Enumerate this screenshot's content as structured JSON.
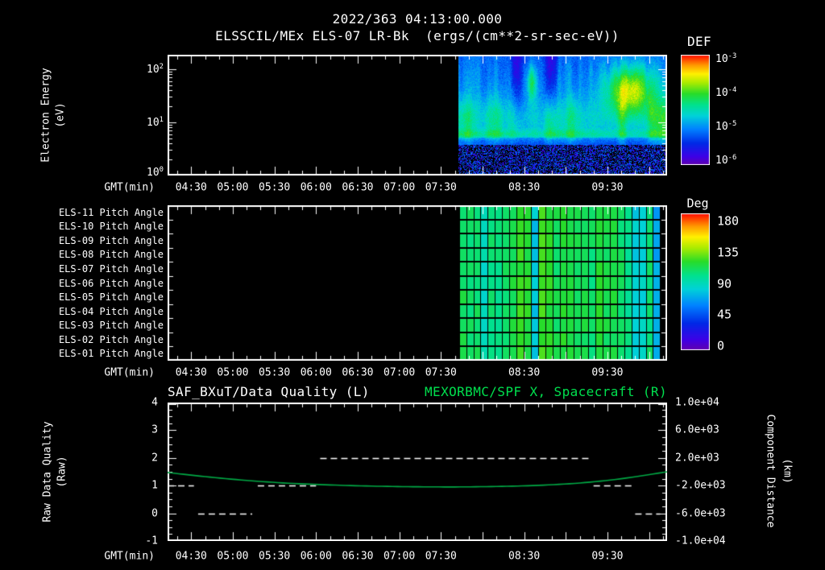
{
  "colors": {
    "background": "#000000",
    "foreground": "#ffffff",
    "accent_green": "#00e04e",
    "curve_green": "#00a844"
  },
  "header": {
    "timestamp": "2022/363 04:13:00.000",
    "plot_title": "ELSSCIL/MEx ELS-07 LR-Bk  (ergs/(cm**2-sr-sec-eV))"
  },
  "time_axis": {
    "label": "GMT(min)",
    "start_gmt": "04:13",
    "end_gmt": "10:13",
    "labeled_ticks": [
      "04:30",
      "05:00",
      "05:30",
      "06:00",
      "06:30",
      "07:00",
      "07:30",
      "08:30",
      "09:30"
    ]
  },
  "panel_energy": {
    "ylabel_line1": "Electron Energy",
    "ylabel_line2": "(eV)",
    "yticks": [
      "10^0",
      "10^1",
      "10^2"
    ],
    "colorbar": {
      "title": "DEF",
      "ticks": [
        "10^-3",
        "10^-4",
        "10^-5",
        "10^-6"
      ]
    }
  },
  "panel_pitch": {
    "row_labels": [
      "ELS-11 Pitch Angle",
      "ELS-10 Pitch Angle",
      "ELS-09 Pitch Angle",
      "ELS-08 Pitch Angle",
      "ELS-07 Pitch Angle",
      "ELS-06 Pitch Angle",
      "ELS-05 Pitch Angle",
      "ELS-04 Pitch Angle",
      "ELS-03 Pitch Angle",
      "ELS-02 Pitch Angle",
      "ELS-01 Pitch Angle"
    ],
    "colorbar": {
      "title": "Deg",
      "ticks": [
        "180",
        "135",
        "90",
        "45",
        "0"
      ]
    }
  },
  "panel_quality": {
    "title_left": "SAF_BXuT/Data Quality (L)",
    "title_right": "MEXORBMC/SPF X, Spacecraft (R)",
    "ylabel_left_line1": "Raw Data Quality",
    "ylabel_left_line2": "(Raw)",
    "ylabel_right_line1": "Component Distance",
    "ylabel_right_line2": "(km)",
    "yticks_left": [
      "4",
      "3",
      "2",
      "1",
      "0",
      "-1"
    ],
    "yticks_right": [
      "1.0e+04",
      "6.0e+03",
      "2.0e+03",
      "-2.0e+03",
      "-6.0e+03",
      "-1.0e+04"
    ]
  },
  "chart_data": [
    {
      "type": "heatmap",
      "panel": "electron-energy-spectrogram",
      "title": "ELSSCIL/MEx ELS-07 LR-Bk (ergs/(cm**2-sr-sec-eV))",
      "xlabel": "GMT(min)",
      "x_range_gmt": [
        "04:13",
        "10:13"
      ],
      "x_ticks": [
        "04:30",
        "05:00",
        "05:30",
        "06:00",
        "06:30",
        "07:00",
        "07:30",
        "08:30",
        "09:30"
      ],
      "ylabel": "Electron Energy (eV)",
      "y_scale": "log",
      "y_ticks": [
        "10^0",
        "10^1",
        "10^2"
      ],
      "y_range_ev": [
        1,
        186
      ],
      "colorbar_label": "DEF",
      "colorbar_units": "ergs/(cm**2-sr-sec-eV)",
      "colorbar_ticks": [
        "10^-3",
        "10^-4",
        "10^-5",
        "10^-6"
      ],
      "data_coverage": {
        "start_gmt": "07:43",
        "end_gmt": "10:13"
      },
      "appearance": "Black (no data) before ~07:43. Afterwards deep-blue background with a cyan-green emission band ~5-60 eV showing vertical striations, dark speckled counts below ~4 eV, dark dropout columns near 08:20-08:50 at high energy, and a bright yellow-green enhancement ~20-100 eV around 09:15-09:50 reaching ~1e-3.5."
    },
    {
      "type": "heatmap",
      "panel": "pitch-angle-grid",
      "rows": [
        "ELS-11 Pitch Angle",
        "ELS-10 Pitch Angle",
        "ELS-09 Pitch Angle",
        "ELS-08 Pitch Angle",
        "ELS-07 Pitch Angle",
        "ELS-06 Pitch Angle",
        "ELS-05 Pitch Angle",
        "ELS-04 Pitch Angle",
        "ELS-03 Pitch Angle",
        "ELS-02 Pitch Angle",
        "ELS-01 Pitch Angle"
      ],
      "xlabel": "GMT(min)",
      "x_range_gmt": [
        "04:13",
        "10:13"
      ],
      "x_ticks": [
        "04:30",
        "05:00",
        "05:30",
        "06:00",
        "06:30",
        "07:00",
        "07:30",
        "08:30",
        "09:30"
      ],
      "value_label": "Pitch Angle",
      "value_range_deg": [
        0,
        180
      ],
      "colorbar_label": "Deg",
      "colorbar_ticks": [
        180,
        135,
        90,
        45,
        0
      ],
      "data_coverage": {
        "start_gmt": "07:43",
        "end_gmt": "10:08"
      },
      "appearance": "Grid of ~5-minute cells across 11 anode rows; pitch angles mostly 85-110 deg (green) with intermittent cyan columns near 55-75 deg and a final column near 40-55 deg (cyan-blue)."
    },
    {
      "type": "line",
      "panel": "quality-and-distance",
      "title_left": "SAF_BXuT/Data Quality (L)",
      "title_right": "MEXORBMC/SPF X, Spacecraft (R)",
      "xlabel": "GMT(min)",
      "x_range_gmt": [
        "04:13",
        "10:13"
      ],
      "x_ticks": [
        "04:30",
        "05:00",
        "05:30",
        "06:00",
        "06:30",
        "07:00",
        "07:30",
        "08:30",
        "09:30"
      ],
      "ylabel_left": "Raw Data Quality (Raw)",
      "ylim_left": [
        -1,
        4
      ],
      "yticks_left": [
        4,
        3,
        2,
        1,
        0,
        -1
      ],
      "ylabel_right": "Component Distance (km)",
      "ylim_right": [
        -10000,
        10000
      ],
      "yticks_right": [
        10000,
        6000,
        2000,
        -2000,
        -6000,
        -10000
      ],
      "series": [
        {
          "name": "MEXORBMC/SPF X, Spacecraft (R)",
          "axis": "right",
          "style": "solid",
          "color": "#00a844",
          "points_gmt_km": [
            [
              "04:13",
              -100
            ],
            [
              "04:40",
              -700
            ],
            [
              "05:10",
              -1250
            ],
            [
              "05:40",
              -1650
            ],
            [
              "06:10",
              -1900
            ],
            [
              "06:40",
              -2070
            ],
            [
              "07:10",
              -2160
            ],
            [
              "07:40",
              -2190
            ],
            [
              "08:10",
              -2120
            ],
            [
              "08:40",
              -1960
            ],
            [
              "09:10",
              -1620
            ],
            [
              "09:40",
              -1000
            ],
            [
              "10:13",
              0
            ]
          ]
        },
        {
          "name": "SAF_BXuT/Data Quality (L)",
          "axis": "left",
          "style": "dashed",
          "color": "#ffffff",
          "segments_gmt_value": [
            {
              "value": 1,
              "from": "04:13",
              "to": "04:32"
            },
            {
              "value": 0,
              "from": "04:35",
              "to": "05:14"
            },
            {
              "value": 1,
              "from": "05:18",
              "to": "06:00"
            },
            {
              "value": 2,
              "from": "06:03",
              "to": "09:18"
            },
            {
              "value": 1,
              "from": "09:20",
              "to": "09:48"
            },
            {
              "value": 0,
              "from": "09:50",
              "to": "10:08"
            }
          ]
        }
      ]
    }
  ]
}
